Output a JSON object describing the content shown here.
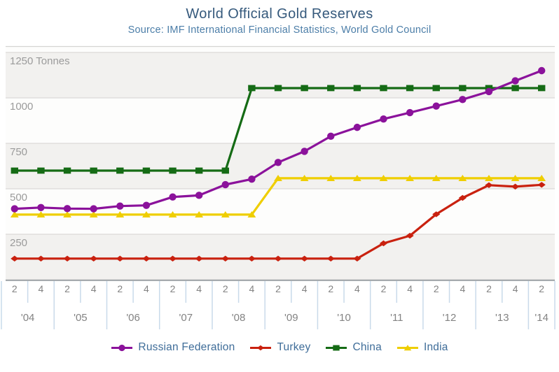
{
  "header": {
    "title": "World Official Gold Reserves",
    "subtitle": "Source: IMF International Financial Statistics, World Gold Council"
  },
  "chart_data": {
    "type": "line",
    "title": "World Official Gold Reserves",
    "source": "Source: IMF International Financial Statistics, World Gold Council",
    "y_axis": {
      "unit": "Tonnes",
      "ylim": [
        0,
        1285
      ],
      "gridlines": true,
      "ticks": [
        {
          "value": 1250,
          "label": "1250 Tonnes"
        },
        {
          "value": 1000,
          "label": "1000"
        },
        {
          "value": 750,
          "label": "750"
        },
        {
          "value": 500,
          "label": "500"
        },
        {
          "value": 250,
          "label": "250"
        }
      ]
    },
    "x_axis": {
      "description": "Half-yearly observations, quarter 2 and quarter 4 of each year",
      "years": [
        {
          "label": "'04",
          "quarters": [
            "2",
            "4"
          ]
        },
        {
          "label": "'05",
          "quarters": [
            "2",
            "4"
          ]
        },
        {
          "label": "'06",
          "quarters": [
            "2",
            "4"
          ]
        },
        {
          "label": "'07",
          "quarters": [
            "2",
            "4"
          ]
        },
        {
          "label": "'08",
          "quarters": [
            "2",
            "4"
          ]
        },
        {
          "label": "'09",
          "quarters": [
            "2",
            "4"
          ]
        },
        {
          "label": "'10",
          "quarters": [
            "2",
            "4"
          ]
        },
        {
          "label": "'11",
          "quarters": [
            "2",
            "4"
          ]
        },
        {
          "label": "'12",
          "quarters": [
            "2",
            "4"
          ]
        },
        {
          "label": "'13",
          "quarters": [
            "2",
            "4"
          ]
        },
        {
          "label": "'14",
          "quarters": [
            "2"
          ]
        }
      ]
    },
    "legend": {
      "position": "bottom"
    },
    "series": [
      {
        "name": "Russian Federation",
        "color": "#8B129B",
        "marker": "circle",
        "values": [
          390,
          397,
          391,
          390,
          405,
          409,
          455,
          464,
          523,
          553,
          645,
          706,
          789,
          838,
          884,
          919,
          955,
          991,
          1035,
          1094,
          1150
        ]
      },
      {
        "name": "Turkey",
        "color": "#C9210F",
        "marker": "diamond",
        "values": [
          116,
          116,
          116,
          116,
          116,
          116,
          116,
          116,
          116,
          116,
          116,
          116,
          116,
          116,
          200,
          242,
          360,
          450,
          520,
          512,
          522
        ]
      },
      {
        "name": "China",
        "color": "#156B15",
        "marker": "square",
        "values": [
          600,
          600,
          600,
          600,
          600,
          600,
          600,
          600,
          600,
          1054,
          1054,
          1054,
          1054,
          1054,
          1054,
          1054,
          1054,
          1054,
          1054,
          1054,
          1054
        ]
      },
      {
        "name": "India",
        "color": "#EFCE00",
        "marker": "triangle",
        "values": [
          358,
          358,
          358,
          358,
          358,
          358,
          358,
          358,
          358,
          358,
          558,
          558,
          558,
          558,
          558,
          558,
          558,
          558,
          558,
          558,
          558
        ]
      }
    ]
  }
}
